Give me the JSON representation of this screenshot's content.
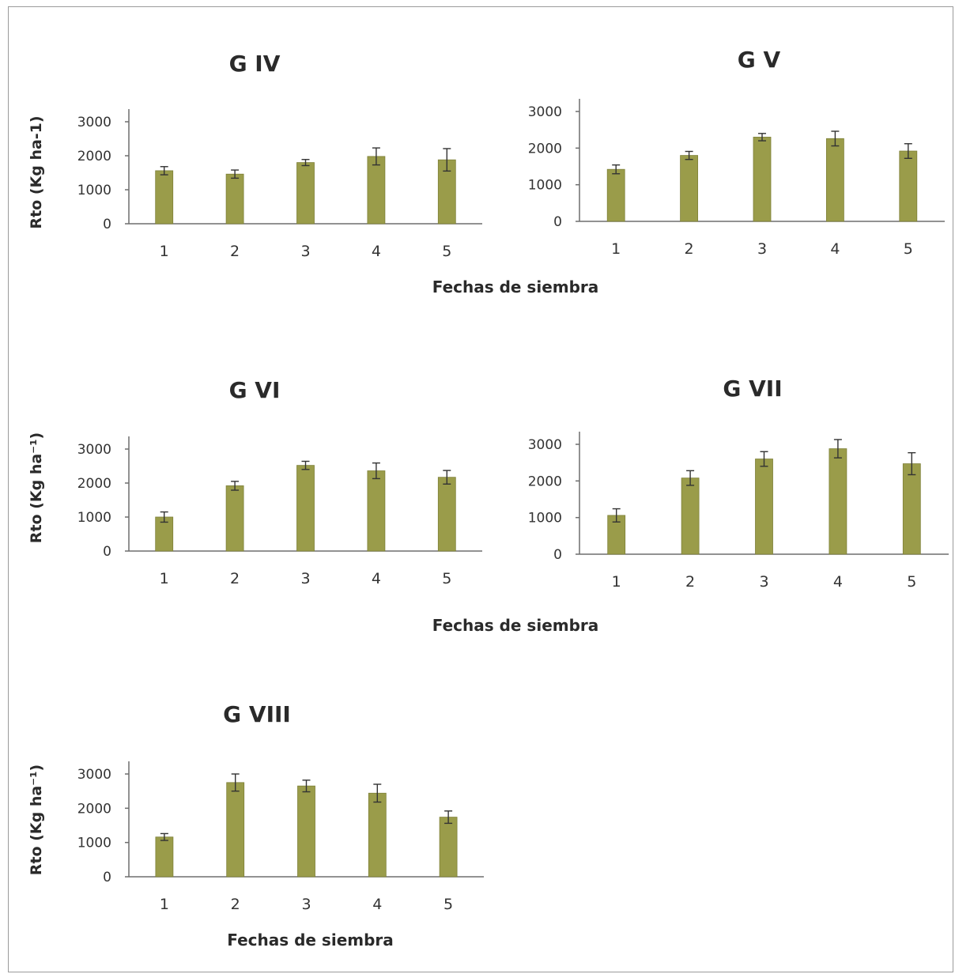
{
  "shared_labels": {
    "xlabel_1": "Fechas de siembra",
    "xlabel_2": "Fechas de siembra",
    "xlabel_3": "Fechas de siembra"
  },
  "colors": {
    "bar": "#9a9c4a",
    "bar_edge": "#7e8038",
    "axis": "#6e6e6e",
    "error": "#333333"
  },
  "chart_data": [
    {
      "type": "bar",
      "title": "G IV",
      "ylabel": "Rto (Kg ha-1)",
      "xlabel": "",
      "categories": [
        "1",
        "2",
        "3",
        "4",
        "5"
      ],
      "values": [
        1560,
        1460,
        1800,
        1980,
        1880
      ],
      "errors": [
        120,
        120,
        90,
        250,
        330
      ],
      "ylim": [
        0,
        3000
      ],
      "yticks": [
        0,
        1000,
        2000,
        3000
      ],
      "grid": false
    },
    {
      "type": "bar",
      "title": "G V",
      "ylabel": "",
      "xlabel": "",
      "categories": [
        "1",
        "2",
        "3",
        "4",
        "5"
      ],
      "values": [
        1420,
        1800,
        2300,
        2260,
        1920
      ],
      "errors": [
        120,
        110,
        100,
        200,
        200
      ],
      "ylim": [
        0,
        3000
      ],
      "yticks": [
        0,
        1000,
        2000,
        3000
      ],
      "grid": false
    },
    {
      "type": "bar",
      "title": "G VI",
      "ylabel": "Rto (Kg ha⁻¹)",
      "xlabel": "",
      "categories": [
        "1",
        "2",
        "3",
        "4",
        "5"
      ],
      "values": [
        1000,
        1920,
        2520,
        2360,
        2170
      ],
      "errors": [
        150,
        130,
        120,
        230,
        200
      ],
      "ylim": [
        0,
        3000
      ],
      "yticks": [
        0,
        1000,
        2000,
        3000
      ],
      "grid": false
    },
    {
      "type": "bar",
      "title": "G VII",
      "ylabel": "",
      "xlabel": "",
      "categories": [
        "1",
        "2",
        "3",
        "4",
        "5"
      ],
      "values": [
        1060,
        2080,
        2600,
        2880,
        2470
      ],
      "errors": [
        180,
        200,
        200,
        250,
        300
      ],
      "ylim": [
        0,
        3000
      ],
      "yticks": [
        0,
        1000,
        2000,
        3000
      ],
      "grid": false
    },
    {
      "type": "bar",
      "title": "G VIII",
      "ylabel": "Rto (Kg ha⁻¹)",
      "xlabel": "Fechas de siembra",
      "categories": [
        "1",
        "2",
        "3",
        "4",
        "5"
      ],
      "values": [
        1160,
        2750,
        2650,
        2440,
        1740
      ],
      "errors": [
        100,
        250,
        170,
        260,
        180
      ],
      "ylim": [
        0,
        3000
      ],
      "yticks": [
        0,
        1000,
        2000,
        3000
      ],
      "grid": false
    }
  ]
}
